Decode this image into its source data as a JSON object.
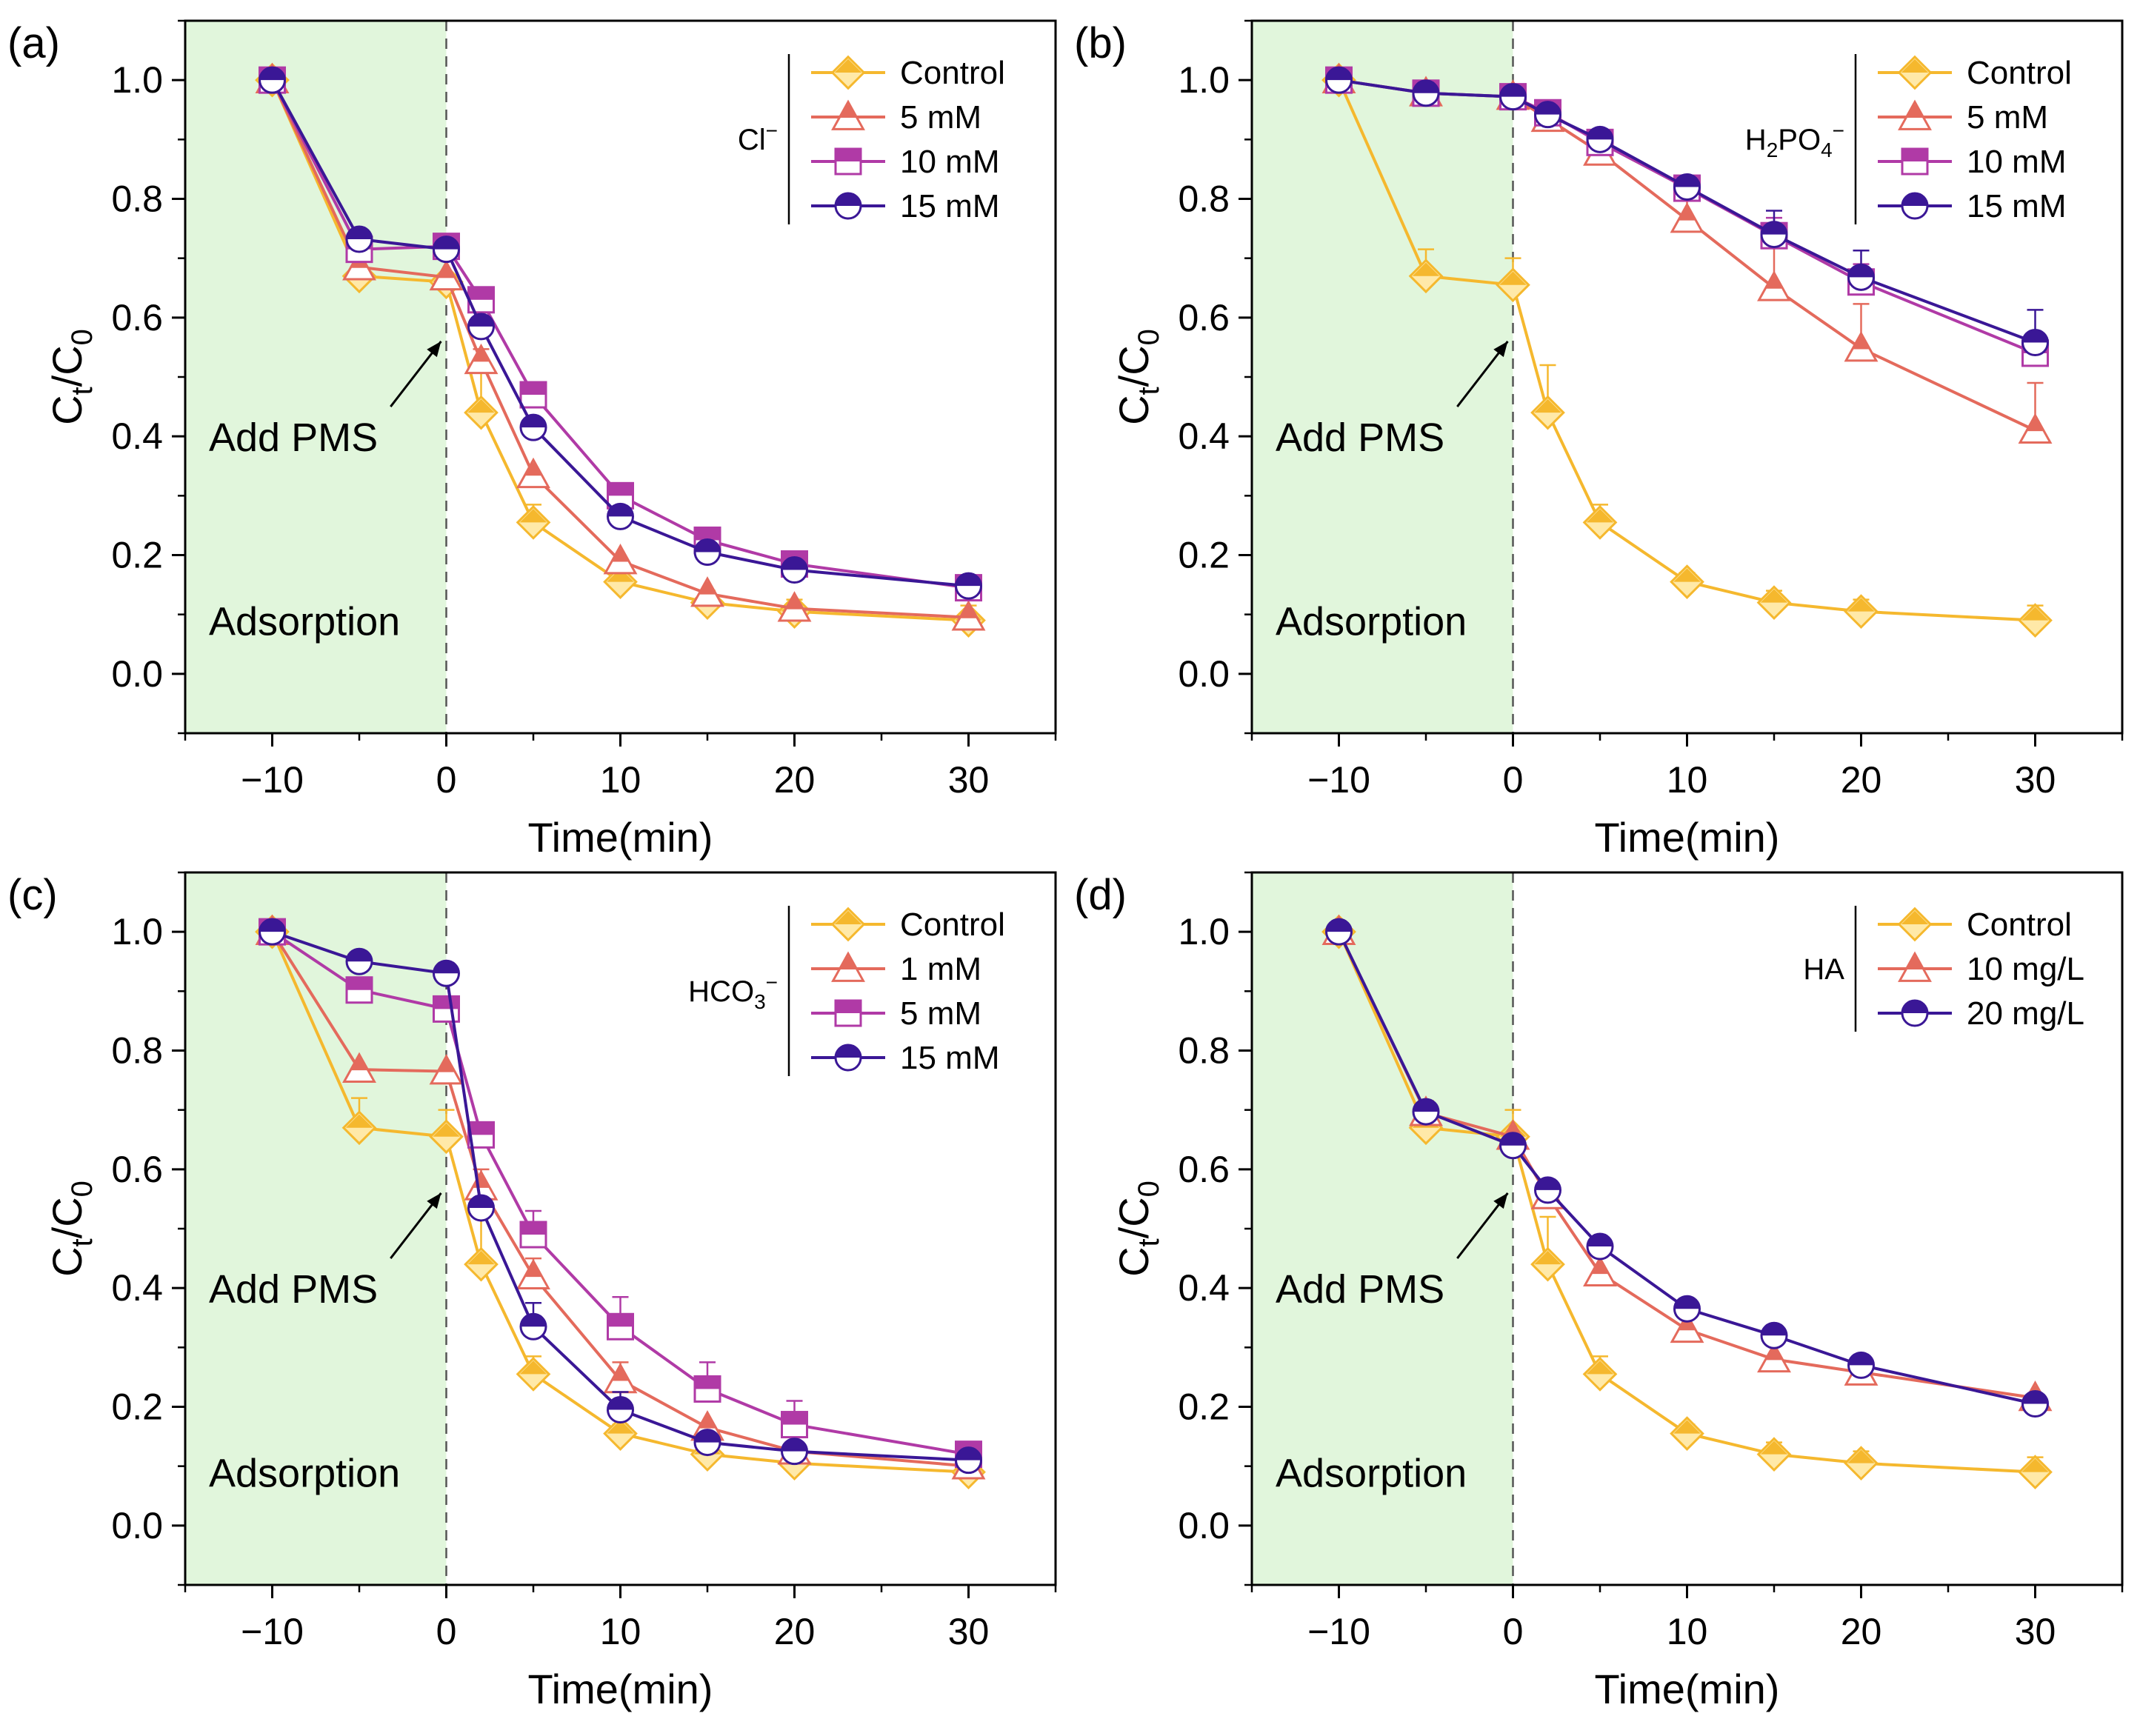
{
  "colors": {
    "control": "#F5B82E",
    "control_fill": "#FFE9A8",
    "s1": "#E46A5C",
    "s2": "#B03AA6",
    "s3": "#3A1796",
    "adsorption_bg": "#E1F6DC"
  },
  "annotations": {
    "add_pms": "Add PMS",
    "adsorption": "Adsorption"
  },
  "chart_data": [
    {
      "type": "line",
      "panel_label": "(a)",
      "xlabel": "Time(min)",
      "ylabel_main": "C",
      "ylabel_sub1": "t",
      "ylabel_mid": "/C",
      "ylabel_sub2": "0",
      "xlim": [
        -15,
        35
      ],
      "ylim": [
        -0.1,
        1.1
      ],
      "xticks": [
        -10,
        0,
        10,
        20,
        30
      ],
      "xtick_labels": [
        "−10",
        "0",
        "10",
        "20",
        "30"
      ],
      "yticks": [
        0.0,
        0.2,
        0.4,
        0.6,
        0.8,
        1.0
      ],
      "ytick_labels": [
        "0.0",
        "0.2",
        "0.4",
        "0.6",
        "0.8",
        "1.0"
      ],
      "legend_group": "Cl",
      "legend_group_sup": "−",
      "legend_group_sub": "",
      "legend_group_tail": "",
      "x": [
        -10,
        -5,
        0,
        2,
        5,
        10,
        15,
        20,
        30
      ],
      "series": [
        {
          "name": "Control",
          "marker": "diamond",
          "color_key": "control",
          "values": [
            1.0,
            0.67,
            0.66,
            0.44,
            0.255,
            0.155,
            0.12,
            0.105,
            0.09
          ],
          "errors": [
            0,
            0.05,
            0.04,
            0.08,
            0.03,
            0.015,
            0.02,
            0.02,
            0.025
          ]
        },
        {
          "name": "5 mM",
          "marker": "triangle",
          "color_key": "s1",
          "values": [
            1.0,
            0.685,
            0.668,
            0.527,
            0.335,
            0.19,
            0.135,
            0.11,
            0.095
          ],
          "errors": [
            0,
            0,
            0,
            0.02,
            0,
            0,
            0,
            0,
            0
          ]
        },
        {
          "name": "10 mM",
          "marker": "square",
          "color_key": "s2",
          "values": [
            1.0,
            0.715,
            0.72,
            0.63,
            0.47,
            0.3,
            0.225,
            0.185,
            0.145
          ],
          "errors": [
            0,
            0,
            0,
            0,
            0,
            0,
            0,
            0,
            0
          ]
        },
        {
          "name": "15 mM",
          "marker": "circle",
          "color_key": "s3",
          "values": [
            1.0,
            0.732,
            0.715,
            0.585,
            0.415,
            0.265,
            0.205,
            0.175,
            0.148
          ],
          "errors": [
            0,
            0,
            0,
            0,
            0,
            0,
            0,
            0,
            0
          ]
        }
      ]
    },
    {
      "type": "line",
      "panel_label": "(b)",
      "xlabel": "Time(min)",
      "ylabel_main": "C",
      "ylabel_sub1": "t",
      "ylabel_mid": "/C",
      "ylabel_sub2": "0",
      "xlim": [
        -15,
        35
      ],
      "ylim": [
        -0.1,
        1.1
      ],
      "xticks": [
        -10,
        0,
        10,
        20,
        30
      ],
      "xtick_labels": [
        "−10",
        "0",
        "10",
        "20",
        "30"
      ],
      "yticks": [
        0.0,
        0.2,
        0.4,
        0.6,
        0.8,
        1.0
      ],
      "ytick_labels": [
        "0.0",
        "0.2",
        "0.4",
        "0.6",
        "0.8",
        "1.0"
      ],
      "legend_group": "H",
      "legend_group_sub": "2",
      "legend_group_tail": "PO",
      "legend_group_sub2": "4",
      "legend_group_sup": "−",
      "x": [
        -10,
        -5,
        0,
        2,
        5,
        10,
        15,
        20,
        30
      ],
      "series": [
        {
          "name": "Control",
          "marker": "diamond",
          "color_key": "control",
          "values": [
            1.0,
            0.67,
            0.655,
            0.44,
            0.255,
            0.155,
            0.12,
            0.105,
            0.09
          ],
          "errors": [
            0,
            0.045,
            0.045,
            0.08,
            0.03,
            0.015,
            0.02,
            0.02,
            0.025
          ]
        },
        {
          "name": "5 mM",
          "marker": "triangle",
          "color_key": "s1",
          "values": [
            1.0,
            0.978,
            0.972,
            0.935,
            0.878,
            0.765,
            0.65,
            0.548,
            0.41
          ],
          "errors": [
            0,
            0,
            0,
            0.015,
            0.025,
            0.05,
            0.07,
            0.075,
            0.08
          ]
        },
        {
          "name": "10 mM",
          "marker": "square",
          "color_key": "s2",
          "values": [
            1.0,
            0.978,
            0.972,
            0.945,
            0.895,
            0.818,
            0.738,
            0.66,
            0.54
          ],
          "errors": [
            0,
            0,
            0,
            0,
            0,
            0,
            0.03,
            0.03,
            0.025
          ]
        },
        {
          "name": "15 mM",
          "marker": "circle",
          "color_key": "s3",
          "values": [
            1.0,
            0.978,
            0.972,
            0.942,
            0.9,
            0.82,
            0.74,
            0.668,
            0.558
          ],
          "errors": [
            0,
            0,
            0,
            0,
            0,
            0,
            0.04,
            0.045,
            0.055
          ]
        }
      ]
    },
    {
      "type": "line",
      "panel_label": "(c)",
      "xlabel": "Time(min)",
      "ylabel_main": "C",
      "ylabel_sub1": "t",
      "ylabel_mid": "/C",
      "ylabel_sub2": "0",
      "xlim": [
        -15,
        35
      ],
      "ylim": [
        -0.1,
        1.1
      ],
      "xticks": [
        -10,
        0,
        10,
        20,
        30
      ],
      "xtick_labels": [
        "−10",
        "0",
        "10",
        "20",
        "30"
      ],
      "yticks": [
        0.0,
        0.2,
        0.4,
        0.6,
        0.8,
        1.0
      ],
      "ytick_labels": [
        "0.0",
        "0.2",
        "0.4",
        "0.6",
        "0.8",
        "1.0"
      ],
      "legend_group": "HCO",
      "legend_group_sub": "3",
      "legend_group_tail": "",
      "legend_group_sup": "−",
      "x": [
        -10,
        -5,
        0,
        2,
        5,
        10,
        15,
        20,
        30
      ],
      "series": [
        {
          "name": "Control",
          "marker": "diamond",
          "color_key": "control",
          "values": [
            1.0,
            0.67,
            0.655,
            0.44,
            0.255,
            0.155,
            0.12,
            0.105,
            0.09
          ],
          "errors": [
            0,
            0.05,
            0.045,
            0.08,
            0.03,
            0.015,
            0.02,
            0.02,
            0.025
          ]
        },
        {
          "name": "1 mM",
          "marker": "triangle",
          "color_key": "s1",
          "values": [
            1.0,
            0.768,
            0.765,
            0.57,
            0.42,
            0.245,
            0.165,
            0.125,
            0.1
          ],
          "errors": [
            0,
            0,
            0,
            0.03,
            0.03,
            0.03,
            0,
            0,
            0
          ]
        },
        {
          "name": "5 mM",
          "marker": "square",
          "color_key": "s2",
          "values": [
            1.0,
            0.902,
            0.87,
            0.658,
            0.49,
            0.335,
            0.23,
            0.17,
            0.12
          ],
          "errors": [
            0,
            0,
            0,
            0,
            0.04,
            0.05,
            0.045,
            0.04,
            0
          ]
        },
        {
          "name": "15 mM",
          "marker": "circle",
          "color_key": "s3",
          "values": [
            1.0,
            0.95,
            0.93,
            0.535,
            0.335,
            0.195,
            0.14,
            0.125,
            0.11
          ],
          "errors": [
            0,
            0,
            0,
            0,
            0.04,
            0.03,
            0,
            0,
            0
          ]
        }
      ]
    },
    {
      "type": "line",
      "panel_label": "(d)",
      "xlabel": "Time(min)",
      "ylabel_main": "C",
      "ylabel_sub1": "t",
      "ylabel_mid": "/C",
      "ylabel_sub2": "0",
      "xlim": [
        -15,
        35
      ],
      "ylim": [
        -0.1,
        1.1
      ],
      "xticks": [
        -10,
        0,
        10,
        20,
        30
      ],
      "xtick_labels": [
        "−10",
        "0",
        "10",
        "20",
        "30"
      ],
      "yticks": [
        0.0,
        0.2,
        0.4,
        0.6,
        0.8,
        1.0
      ],
      "ytick_labels": [
        "0.0",
        "0.2",
        "0.4",
        "0.6",
        "0.8",
        "1.0"
      ],
      "legend_group": "HA",
      "legend_group_sub": "",
      "legend_group_tail": "",
      "legend_group_sup": "",
      "x": [
        -10,
        -5,
        0,
        2,
        5,
        10,
        15,
        20,
        30
      ],
      "series": [
        {
          "name": "Control",
          "marker": "diamond",
          "color_key": "control",
          "values": [
            1.0,
            0.67,
            0.655,
            0.44,
            0.255,
            0.155,
            0.12,
            0.105,
            0.09
          ],
          "errors": [
            0,
            0.045,
            0.045,
            0.08,
            0.03,
            0.015,
            0.02,
            0.02,
            0.025
          ]
        },
        {
          "name": "10 mg/L",
          "marker": "triangle",
          "color_key": "s1",
          "values": [
            1.0,
            0.695,
            0.655,
            0.555,
            0.425,
            0.33,
            0.28,
            0.258,
            0.215
          ],
          "errors": [
            0,
            0,
            0,
            0,
            0,
            0,
            0,
            0,
            0
          ]
        },
        {
          "name": "20 mg/L",
          "marker": "circle",
          "color_key": "s3",
          "values": [
            1.0,
            0.697,
            0.64,
            0.565,
            0.47,
            0.365,
            0.32,
            0.27,
            0.205
          ],
          "errors": [
            0,
            0,
            0,
            0,
            0,
            0,
            0,
            0,
            0
          ]
        }
      ]
    }
  ]
}
